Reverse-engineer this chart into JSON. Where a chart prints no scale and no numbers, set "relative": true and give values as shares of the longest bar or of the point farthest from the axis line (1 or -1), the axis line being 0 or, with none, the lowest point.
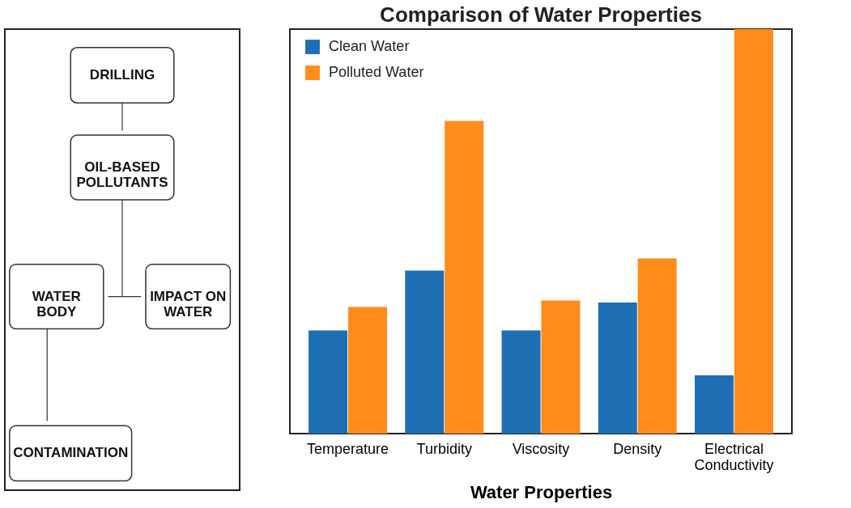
{
  "chart_data": [
    {
      "type": "other",
      "annotations": [
        "DRILLING",
        "OIL-BASED\nPOLLUTANTS",
        "WATER\nBODY",
        "IMPACT ON\nWATER",
        "CONTAMINATION"
      ]
    },
    {
      "type": "bar",
      "title": "Comparison of Water Properties",
      "xlabel": "Water Properties",
      "relative": true,
      "categories": [
        "Temperature",
        "Turbidity",
        "Viscosity",
        "Density",
        "Electrical\nConductivity"
      ],
      "series": [
        {
          "name": "Clean Water",
          "color": "#1f6fb4",
          "values": [
            0.255,
            0.403,
            0.255,
            0.324,
            0.144
          ]
        },
        {
          "name": "Polluted Water",
          "color": "#ff8c1a",
          "values": [
            0.313,
            0.773,
            0.329,
            0.433,
            1.0
          ]
        }
      ],
      "legend": "top left",
      "grid": false
    }
  ]
}
